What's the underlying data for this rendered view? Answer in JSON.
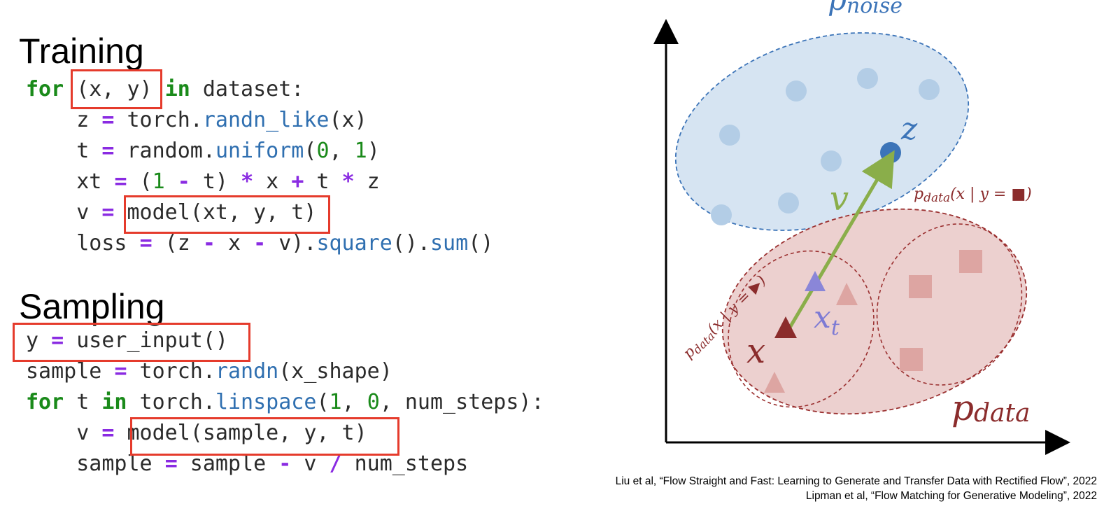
{
  "training": {
    "heading": "Training",
    "lines": [
      [
        {
          "t": "for ",
          "c": "kw"
        },
        {
          "t": "(x, y)",
          "c": ""
        },
        {
          "t": " ",
          "c": ""
        },
        {
          "t": "in",
          "c": "kw"
        },
        {
          "t": " dataset:",
          "c": ""
        }
      ],
      [
        {
          "t": "    z ",
          "c": ""
        },
        {
          "t": "=",
          "c": "op"
        },
        {
          "t": " torch.",
          "c": ""
        },
        {
          "t": "randn_like",
          "c": "fn"
        },
        {
          "t": "(x)",
          "c": ""
        }
      ],
      [
        {
          "t": "    t ",
          "c": ""
        },
        {
          "t": "=",
          "c": "op"
        },
        {
          "t": " random.",
          "c": ""
        },
        {
          "t": "uniform",
          "c": "fn"
        },
        {
          "t": "(",
          "c": ""
        },
        {
          "t": "0",
          "c": "num"
        },
        {
          "t": ", ",
          "c": ""
        },
        {
          "t": "1",
          "c": "num"
        },
        {
          "t": ")",
          "c": ""
        }
      ],
      [
        {
          "t": "    xt ",
          "c": ""
        },
        {
          "t": "=",
          "c": "op"
        },
        {
          "t": " (",
          "c": ""
        },
        {
          "t": "1",
          "c": "num"
        },
        {
          "t": " ",
          "c": ""
        },
        {
          "t": "-",
          "c": "op"
        },
        {
          "t": " t) ",
          "c": ""
        },
        {
          "t": "*",
          "c": "op"
        },
        {
          "t": " x ",
          "c": ""
        },
        {
          "t": "+",
          "c": "op"
        },
        {
          "t": " t ",
          "c": ""
        },
        {
          "t": "*",
          "c": "op"
        },
        {
          "t": " z",
          "c": ""
        }
      ],
      [
        {
          "t": "    v ",
          "c": ""
        },
        {
          "t": "=",
          "c": "op"
        },
        {
          "t": " model(xt, y, t)",
          "c": ""
        }
      ],
      [
        {
          "t": "    loss ",
          "c": ""
        },
        {
          "t": "=",
          "c": "op"
        },
        {
          "t": " (z ",
          "c": ""
        },
        {
          "t": "-",
          "c": "op"
        },
        {
          "t": " x ",
          "c": ""
        },
        {
          "t": "-",
          "c": "op"
        },
        {
          "t": " v).",
          "c": ""
        },
        {
          "t": "square",
          "c": "fn"
        },
        {
          "t": "().",
          "c": ""
        },
        {
          "t": "sum",
          "c": "fn"
        },
        {
          "t": "()",
          "c": ""
        }
      ]
    ]
  },
  "sampling": {
    "heading": "Sampling",
    "lines": [
      [
        {
          "t": "y ",
          "c": ""
        },
        {
          "t": "=",
          "c": "op"
        },
        {
          "t": " user_input()",
          "c": ""
        }
      ],
      [
        {
          "t": "sample ",
          "c": ""
        },
        {
          "t": "=",
          "c": "op"
        },
        {
          "t": " torch.",
          "c": ""
        },
        {
          "t": "randn",
          "c": "fn"
        },
        {
          "t": "(x_shape)",
          "c": ""
        }
      ],
      [
        {
          "t": "for",
          "c": "kw"
        },
        {
          "t": " t ",
          "c": ""
        },
        {
          "t": "in",
          "c": "kw"
        },
        {
          "t": " torch.",
          "c": ""
        },
        {
          "t": "linspace",
          "c": "fn"
        },
        {
          "t": "(",
          "c": ""
        },
        {
          "t": "1",
          "c": "num"
        },
        {
          "t": ", ",
          "c": ""
        },
        {
          "t": "0",
          "c": "num"
        },
        {
          "t": ", num_steps):",
          "c": ""
        }
      ],
      [
        {
          "t": "    v ",
          "c": ""
        },
        {
          "t": "=",
          "c": "op"
        },
        {
          "t": " model(sample, y, t)",
          "c": ""
        }
      ],
      [
        {
          "t": "    sample ",
          "c": ""
        },
        {
          "t": "=",
          "c": "op"
        },
        {
          "t": " sample ",
          "c": ""
        },
        {
          "t": "-",
          "c": "op"
        },
        {
          "t": " v ",
          "c": ""
        },
        {
          "t": "/",
          "c": "op"
        },
        {
          "t": " num_steps",
          "c": ""
        }
      ]
    ]
  },
  "diagram": {
    "p_noise_label": "p",
    "p_noise_sub": "noise",
    "z_label": "z",
    "v_label": "v",
    "x_label": "x",
    "xt_label": "x",
    "xt_sub": "t",
    "p_data_label": "p",
    "p_data_sub": "data",
    "cond_square_label": "p",
    "cond_square_sub": "data",
    "cond_square_expr": "(x | y = ■)",
    "cond_triangle_label": "p",
    "cond_triangle_sub": "data",
    "cond_triangle_expr": "(x | y = ▶)",
    "colors": {
      "noise_fill": "#d6e4f2",
      "noise_dot": "#b3cde6",
      "noise_stroke": "#3c74b8",
      "z_dot": "#3c74b8",
      "data_fill": "#ecd0cf",
      "data_stroke": "#9a2f2f",
      "data_marker": "#dda5a2",
      "x_triangle": "#8b2c2c",
      "xt_triangle": "#8a86d8",
      "arrow": "#8aae4a",
      "label_red": "#8b2c2c",
      "label_purple": "#7d7ad4"
    }
  },
  "citations": [
    "Liu et al, “Flow Straight and Fast: Learning to Generate and Transfer Data with Rectified Flow”, 2022",
    "Lipman et al, “Flow Matching for Generative Modeling”, 2022"
  ]
}
